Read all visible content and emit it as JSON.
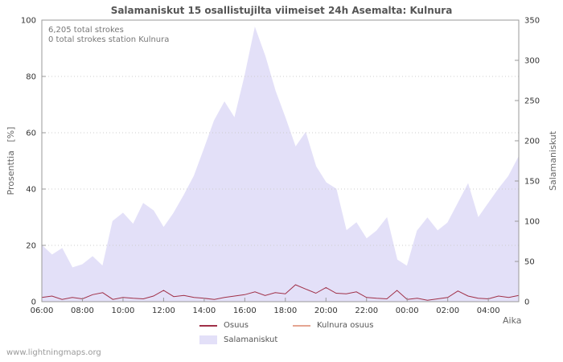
{
  "title": "Salamaniskut 15 osallistujilta viimeiset 24h Asemalta: Kulnura",
  "annotations": {
    "total_strokes": "6,205 total strokes",
    "station_strokes": "0 total strokes station Kulnura"
  },
  "axes": {
    "left_label": "Prosenttia   [%]",
    "right_label": "Salamaniskut",
    "x_label": "Aika"
  },
  "watermark": "www.lightningmaps.org",
  "colors": {
    "grid": "#cccccc",
    "frame": "#999999",
    "tick_text": "#333333",
    "area": "#e3e0f8",
    "osuus_line": "#a03048",
    "kulnura_line": "#e5a592"
  },
  "chart_data": {
    "type": "area",
    "title": "Salamaniskut 15 osallistujilta viimeiset 24h Asemalta: Kulnura",
    "xlabel": "Aika",
    "ylabel_left": "Prosenttia [%]",
    "ylabel_right": "Salamaniskut",
    "left_ylim": [
      0,
      100
    ],
    "right_ylim": [
      0,
      350
    ],
    "left_ticks": [
      0,
      20,
      40,
      60,
      80,
      100
    ],
    "right_ticks": [
      0,
      50,
      100,
      150,
      200,
      250,
      300,
      350
    ],
    "x_ticks": [
      "06:00",
      "08:00",
      "10:00",
      "12:00",
      "14:00",
      "16:00",
      "18:00",
      "20:00",
      "22:00",
      "00:00",
      "02:00",
      "04:00"
    ],
    "x_times": [
      "06:00",
      "06:30",
      "07:00",
      "07:30",
      "08:00",
      "08:30",
      "09:00",
      "09:30",
      "10:00",
      "10:30",
      "11:00",
      "11:30",
      "12:00",
      "12:30",
      "13:00",
      "13:30",
      "14:00",
      "14:30",
      "15:00",
      "15:30",
      "16:00",
      "16:30",
      "17:00",
      "17:30",
      "18:00",
      "18:30",
      "19:00",
      "19:30",
      "20:00",
      "20:30",
      "21:00",
      "21:30",
      "22:00",
      "22:30",
      "23:00",
      "23:30",
      "00:00",
      "00:30",
      "01:00",
      "01:30",
      "02:00",
      "02:30",
      "03:00",
      "03:30",
      "04:00",
      "04:30",
      "05:00",
      "05:30"
    ],
    "series": [
      {
        "name": "Salamaniskut",
        "type": "area",
        "axis": "right",
        "color": "#e3e0f8",
        "values": [
          70,
          58,
          66,
          42,
          46,
          56,
          44,
          100,
          110,
          96,
          122,
          113,
          92,
          110,
          132,
          156,
          190,
          225,
          248,
          228,
          280,
          340,
          305,
          262,
          228,
          192,
          210,
          168,
          148,
          140,
          88,
          98,
          78,
          88,
          104,
          52,
          44,
          88,
          104,
          88,
          98,
          122,
          146,
          104,
          122,
          140,
          156,
          180
        ]
      },
      {
        "name": "Osuus",
        "type": "line",
        "axis": "left",
        "color": "#a03048",
        "values": [
          1.5,
          2.0,
          0.8,
          1.5,
          1.0,
          2.5,
          3.2,
          0.8,
          1.5,
          1.2,
          1.0,
          2.0,
          4.0,
          1.8,
          2.2,
          1.5,
          1.2,
          0.8,
          1.5,
          2.0,
          2.5,
          3.5,
          2.2,
          3.2,
          2.8,
          6.0,
          4.5,
          3.0,
          5.0,
          3.0,
          2.8,
          3.5,
          1.5,
          1.2,
          1.0,
          4.0,
          0.8,
          1.2,
          0.5,
          1.0,
          1.5,
          3.8,
          2.0,
          1.2,
          1.0,
          2.0,
          1.5,
          2.2
        ]
      },
      {
        "name": "Kulnura osuus",
        "type": "line",
        "axis": "left",
        "color": "#e5a592",
        "values": [
          0,
          0,
          0,
          0,
          0,
          0,
          0,
          0,
          0,
          0,
          0,
          0,
          0,
          0,
          0,
          0,
          0,
          0,
          0,
          0,
          0,
          0,
          0,
          0,
          0,
          0,
          0,
          0,
          0,
          0,
          0,
          0,
          0,
          0,
          0,
          0,
          0,
          0,
          0,
          0,
          0,
          0,
          0,
          0,
          0,
          0,
          0,
          0
        ]
      }
    ],
    "legend_position": "bottom",
    "grid": true
  }
}
